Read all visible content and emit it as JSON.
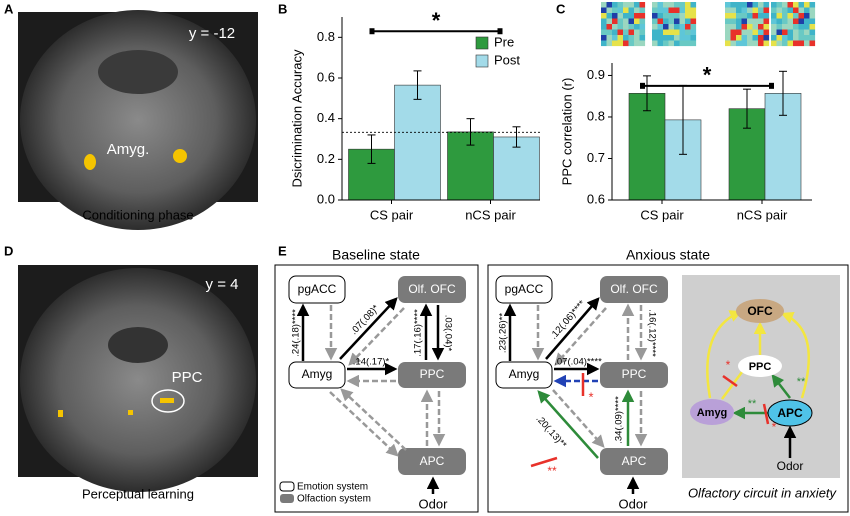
{
  "panel_labels": [
    "A",
    "B",
    "C",
    "D",
    "E"
  ],
  "panel_a": {
    "slice": "y = -12",
    "region": "Amyg.",
    "caption": "Conditioning phase"
  },
  "panel_d": {
    "slice": "y = 4",
    "region": "PPC",
    "caption": "Perceptual learning"
  },
  "chart_data": [
    {
      "type": "bar",
      "ylabel": "Dsicrimination Accuracy",
      "categories": [
        "CS pair",
        "nCS pair"
      ],
      "series": [
        {
          "name": "Pre",
          "color": "#2e9a3e",
          "values": [
            0.25,
            0.335
          ],
          "errors": [
            0.07,
            0.065
          ]
        },
        {
          "name": "Post",
          "color": "#a3dbe9",
          "values": [
            0.565,
            0.31
          ],
          "errors": [
            0.07,
            0.05
          ]
        }
      ],
      "ylim": [
        0,
        0.9
      ],
      "yticks": [
        {
          "value": 0,
          "label": "0.0"
        },
        0.2,
        0.4,
        0.6,
        0.8
      ],
      "reference_line": 0.333,
      "significance": {
        "label": "*",
        "y": 0.83
      },
      "legend": "upper right"
    },
    {
      "type": "bar",
      "ylabel": "PPC correlation (r)",
      "categories": [
        "CS pair",
        "nCS pair"
      ],
      "series": [
        {
          "name": "Pre",
          "color": "#2e9a3e",
          "values": [
            0.857,
            0.82
          ],
          "errors": [
            0.042,
            0.047
          ]
        },
        {
          "name": "Post",
          "color": "#a3dbe9",
          "values": [
            0.793,
            0.857
          ],
          "errors": [
            0.083,
            0.053
          ]
        }
      ],
      "ylim": [
        0.6,
        0.93
      ],
      "yticks": [
        0.6,
        0.7,
        0.8,
        0.9
      ],
      "significance": {
        "label": "*",
        "y": 0.875
      }
    }
  ],
  "panel_e": {
    "baseline": {
      "title": "Baseline state",
      "nodes": [
        "pgACC",
        "Olf. OFC",
        "Amyg",
        "PPC",
        "APC"
      ],
      "edge_labels": [
        ".24(.18)****",
        ".07(.08)*",
        ".17(.16)****",
        ".03(.04)*",
        ".14(.17)*"
      ],
      "input": "Odor",
      "legend": [
        "Emotion system",
        "Olfaction system"
      ]
    },
    "anxious": {
      "title": "Anxious state",
      "nodes": [
        "pgACC",
        "Olf. OFC",
        "Amyg",
        "PPC",
        "APC"
      ],
      "edge_labels": [
        ".23(.26)**",
        ".12(.06)****",
        ".16(.12)****",
        ".07(.04)****",
        ".34(.09)****",
        ".20(.13)**"
      ],
      "input": "Odor",
      "marks": [
        "*",
        "**"
      ]
    },
    "inset": {
      "nodes": [
        "OFC",
        "PPC",
        "Amyg",
        "APC"
      ],
      "input": "Odor",
      "marks": [
        "*",
        "**",
        "**",
        "*"
      ],
      "caption": "Olfactory circuit in anxiety"
    }
  }
}
